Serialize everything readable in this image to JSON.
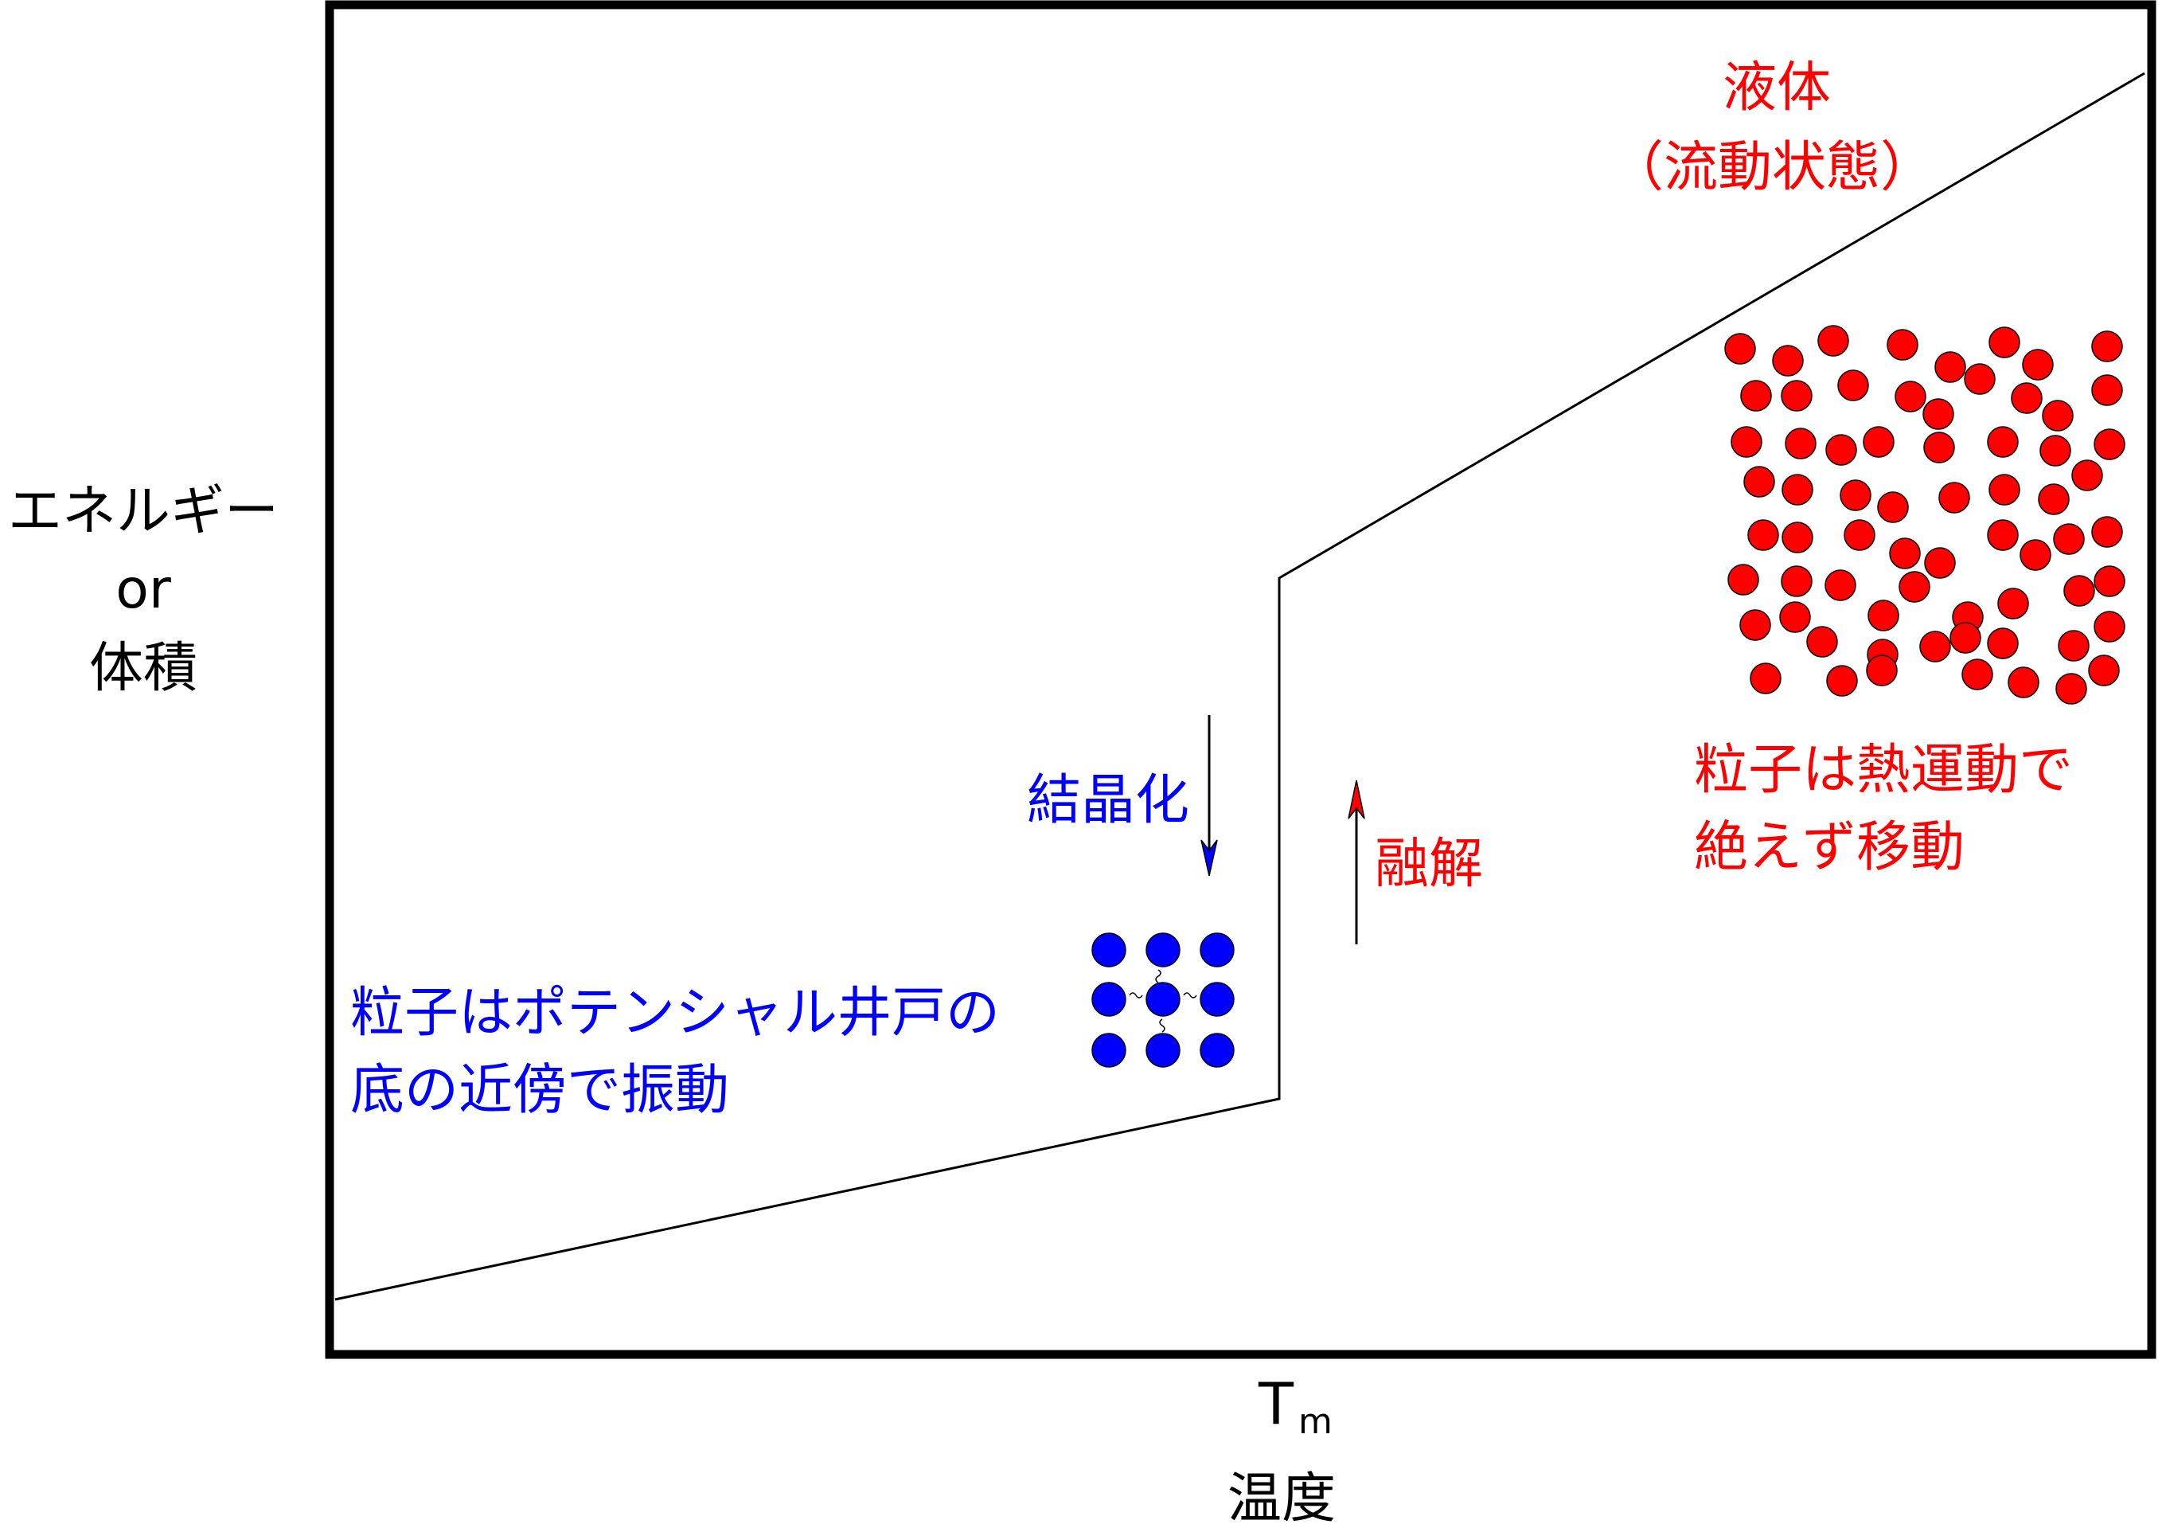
{
  "y_axis_label": [
    "エネルギー",
    "or",
    "体積"
  ],
  "x_axis_label": "温度",
  "tm_label": {
    "main": "T",
    "sub": "m"
  },
  "liquid_label": [
    "液体",
    "（流動状態）"
  ],
  "liquid_note": [
    "粒子は熱運動で",
    "絶えず移動"
  ],
  "solid_note": [
    "粒子はポテンシャル井戸の",
    "底の近傍で振動"
  ],
  "crystallization_label": "結晶化",
  "melting_label": "融解",
  "colors": {
    "liquid": "#ff0000",
    "solid": "#0000ff",
    "line": "#000000"
  }
}
